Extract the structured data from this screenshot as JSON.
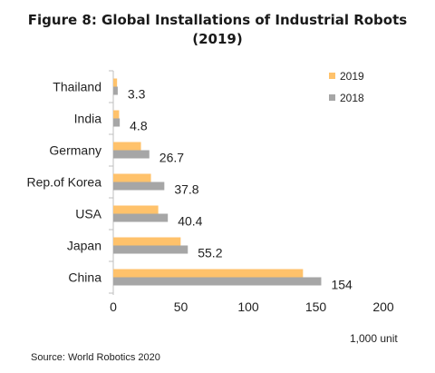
{
  "chart_data": {
    "type": "bar",
    "orientation": "horizontal",
    "title_line1": "Figure 8: Global Installations of Industrial Robots",
    "title_line2": "(2019)",
    "categories": [
      "Thailand",
      "India",
      "Germany",
      "Rep.of Korea",
      "USA",
      "Japan",
      "China"
    ],
    "series": [
      {
        "name": "2019",
        "color": "#FFC26B",
        "values": [
          2.8,
          4.3,
          20.5,
          27.9,
          33.3,
          49.9,
          140.5
        ]
      },
      {
        "name": "2018",
        "color": "#A6A6A6",
        "values": [
          3.3,
          4.8,
          26.7,
          37.8,
          40.4,
          55.2,
          154
        ]
      }
    ],
    "data_labels": [
      "3.3",
      "4.8",
      "26.7",
      "37.8",
      "40.4",
      "55.2",
      "154"
    ],
    "xlim": [
      0,
      200
    ],
    "xticks": [
      0,
      50,
      100,
      150,
      200
    ],
    "grid": false,
    "legend_position": "top-right",
    "unit_note": "1,000 unit",
    "source": "Source: World Robotics 2020"
  }
}
